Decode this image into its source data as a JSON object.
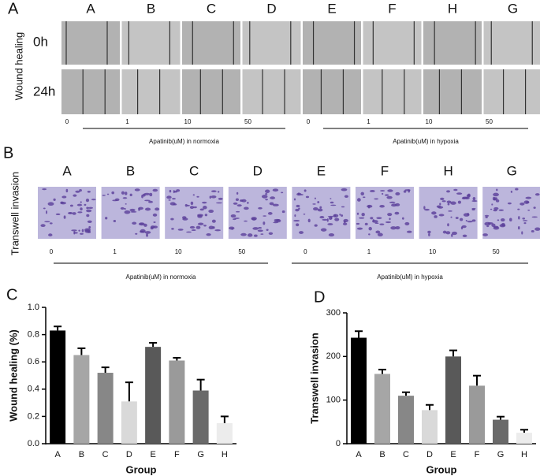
{
  "panel_a": {
    "label": "A",
    "side_label": "Wound healing",
    "columns": [
      "A",
      "B",
      "C",
      "D",
      "E",
      "F",
      "H",
      "G"
    ],
    "rows": [
      "0h",
      "24h"
    ],
    "doses": [
      "0",
      "1",
      "10",
      "50",
      "0",
      "1",
      "10",
      "50"
    ],
    "groups": [
      "Apatinib(uM) in normoxia",
      "Apatinib(uM) in hypoxia"
    ]
  },
  "panel_b": {
    "label": "B",
    "side_label": "Transwell invasion",
    "columns": [
      "A",
      "B",
      "C",
      "D",
      "E",
      "F",
      "H",
      "G"
    ],
    "doses": [
      "0",
      "1",
      "10",
      "50",
      "0",
      "1",
      "10",
      "50"
    ],
    "groups": [
      "Apatinib(uM) in normoxia",
      "Apatinib(uM) in hypoxia"
    ]
  },
  "chart_data": [
    {
      "type": "bar",
      "panel": "C",
      "ylabel": "Wound healing (%)",
      "xlabel": "Group",
      "categories": [
        "A",
        "B",
        "C",
        "D",
        "E",
        "F",
        "G",
        "H"
      ],
      "values": [
        0.83,
        0.65,
        0.52,
        0.31,
        0.71,
        0.61,
        0.39,
        0.15
      ],
      "errors": [
        0.03,
        0.05,
        0.04,
        0.14,
        0.03,
        0.02,
        0.08,
        0.05
      ],
      "colors": [
        "#000000",
        "#a6a6a6",
        "#878787",
        "#d9d9d9",
        "#595959",
        "#9a9a9a",
        "#6a6a6a",
        "#ececec"
      ],
      "ylim": [
        0,
        1
      ],
      "yticks": [
        {
          "value": 0,
          "label": "0.0"
        },
        0.2,
        0.4,
        0.6,
        0.8,
        {
          "value": 1,
          "label": "1.0"
        }
      ]
    },
    {
      "type": "bar",
      "panel": "D",
      "ylabel": "Transwell invasion",
      "xlabel": "Group",
      "categories": [
        "A",
        "B",
        "C",
        "D",
        "E",
        "F",
        "G",
        "H"
      ],
      "values": [
        243,
        160,
        110,
        77,
        200,
        133,
        55,
        25
      ],
      "errors": [
        15,
        10,
        8,
        12,
        14,
        23,
        7,
        7
      ],
      "colors": [
        "#000000",
        "#a6a6a6",
        "#878787",
        "#d9d9d9",
        "#595959",
        "#9a9a9a",
        "#6a6a6a",
        "#ececec"
      ],
      "ylim": [
        0,
        300
      ],
      "yticks": [
        0,
        100,
        200,
        300
      ]
    }
  ]
}
